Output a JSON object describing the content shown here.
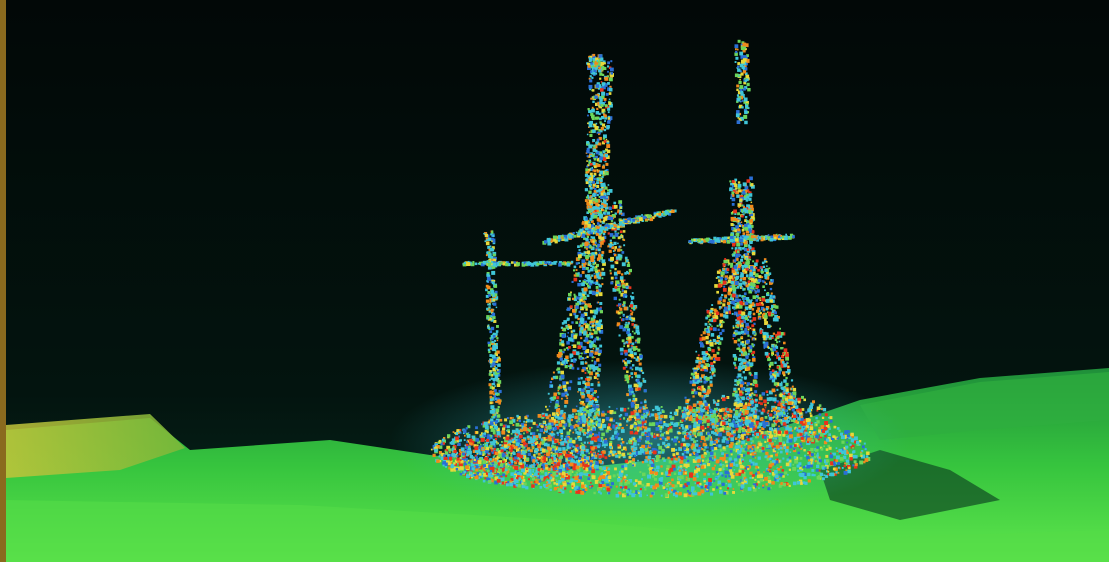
{
  "image": {
    "subject": "sonar-scan-shipwreck",
    "colors": {
      "water_top": "#020807",
      "water_bottom": "#04201a",
      "seafloor_dark": "#0f5d2c",
      "seafloor_mid": "#2bbf3a",
      "seafloor_light": "#5de64a",
      "ridge_yellow": "#b8c23a",
      "echo_red": "#e8331c",
      "echo_orange": "#f08a1c",
      "echo_yellow": "#e6d93a",
      "echo_green": "#6cd65a",
      "echo_cyan": "#3fc6d8",
      "echo_blue": "#2a6fd6",
      "frame_gold": "#8a6a1e"
    }
  }
}
